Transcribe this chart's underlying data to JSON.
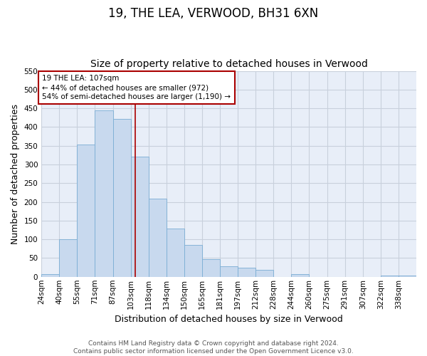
{
  "title": "19, THE LEA, VERWOOD, BH31 6XN",
  "subtitle": "Size of property relative to detached houses in Verwood",
  "xlabel": "Distribution of detached houses by size in Verwood",
  "ylabel": "Number of detached properties",
  "bin_labels": [
    "24sqm",
    "40sqm",
    "55sqm",
    "71sqm",
    "87sqm",
    "103sqm",
    "118sqm",
    "134sqm",
    "150sqm",
    "165sqm",
    "181sqm",
    "197sqm",
    "212sqm",
    "228sqm",
    "244sqm",
    "260sqm",
    "275sqm",
    "291sqm",
    "307sqm",
    "322sqm",
    "338sqm"
  ],
  "bar_heights": [
    7,
    100,
    354,
    444,
    421,
    321,
    208,
    128,
    85,
    47,
    28,
    24,
    19,
    0,
    8,
    0,
    0,
    0,
    0,
    3,
    3
  ],
  "bar_color": "#c8d9ee",
  "bar_edge_color": "#7aadd4",
  "marker_label": "19 THE LEA: 107sqm",
  "marker_color": "#aa0000",
  "annotation_line1": "← 44% of detached houses are smaller (972)",
  "annotation_line2": "54% of semi-detached houses are larger (1,190) →",
  "ylim": [
    0,
    550
  ],
  "yticks": [
    0,
    50,
    100,
    150,
    200,
    250,
    300,
    350,
    400,
    450,
    500,
    550
  ],
  "footnote": "Contains HM Land Registry data © Crown copyright and database right 2024.\nContains public sector information licensed under the Open Government Licence v3.0.",
  "bg_color": "#ffffff",
  "grid_color": "#c8d0dc",
  "plot_bg_color": "#e8eef8",
  "title_fontsize": 12,
  "subtitle_fontsize": 10,
  "axis_label_fontsize": 9,
  "tick_fontsize": 7.5,
  "footnote_fontsize": 6.5
}
